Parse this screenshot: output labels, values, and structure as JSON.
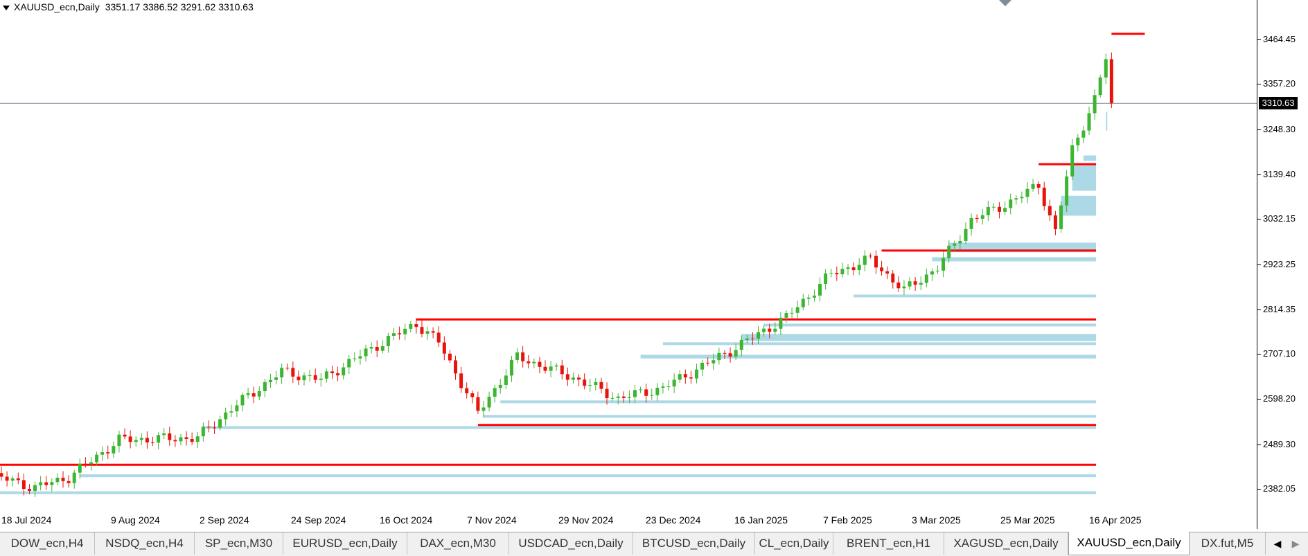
{
  "header": {
    "symbol": "XAUUSD_ecn,Daily",
    "ohlc": "3351.17 3386.52 3291.62 3310.63"
  },
  "colors": {
    "bull": "#3cb531",
    "bear": "#e8140c",
    "zone_blue": "#add8e6",
    "zone_gray": "#d3d3d3",
    "level_red": "#ff0000",
    "crosshair": "#7f8c99"
  },
  "price_axis": {
    "labels": [
      "3464.45",
      "3357.20",
      "3248.30",
      "3139.40",
      "3032.15",
      "2923.25",
      "2814.35",
      "2707.10",
      "2598.20",
      "2489.30",
      "2382.05"
    ],
    "current_price": "3310.63"
  },
  "time_axis": {
    "labels": [
      "18 Jul 2024",
      "9 Aug 2024",
      "2 Sep 2024",
      "24 Sep 2024",
      "16 Oct 2024",
      "7 Nov 2024",
      "29 Nov 2024",
      "23 Dec 2024",
      "16 Jan 2025",
      "7 Feb 2025",
      "3 Mar 2025",
      "25 Mar 2025",
      "16 Apr 2025"
    ]
  },
  "tabs": [
    {
      "label": "DOW_ecn,H4",
      "active": false
    },
    {
      "label": "NSDQ_ecn,H4",
      "active": false
    },
    {
      "label": "SP_ecn,M30",
      "active": false
    },
    {
      "label": "EURUSD_ecn,Daily",
      "active": false
    },
    {
      "label": "DAX_ecn,M30",
      "active": false
    },
    {
      "label": "USDCAD_ecn,Daily",
      "active": false
    },
    {
      "label": "BTCUSD_ecn,Daily",
      "active": false
    },
    {
      "label": "CL_ecn,Daily",
      "active": false
    },
    {
      "label": "BRENT_ecn,H1",
      "active": false
    },
    {
      "label": "XAGUSD_ecn,Daily",
      "active": false
    },
    {
      "label": "XAUUSD_ecn,Daily",
      "active": true
    },
    {
      "label": "DX.fut,M5",
      "active": false
    }
  ],
  "tab_nav": {
    "left": "◀",
    "right": "▶"
  },
  "chart_data": {
    "type": "candlestick",
    "symbol": "XAUUSD_ecn",
    "timeframe": "Daily",
    "ylim": [
      2340,
      3520
    ],
    "last_close": 3310.63,
    "key_levels_red": [
      {
        "price": 3478,
        "from": "2025-04-22",
        "to": "2025-04-24"
      },
      {
        "price": 3164,
        "from": "2025-04-03",
        "to": "2025-04-24"
      },
      {
        "price": 2956,
        "from": "2025-02-24",
        "to": "2025-04-24"
      },
      {
        "price": 2790,
        "from": "2024-10-30",
        "to": "2025-04-24"
      },
      {
        "price": 2536,
        "from": "2024-11-14",
        "to": "2025-04-24"
      },
      {
        "price": 2440,
        "from": "2024-07-15",
        "to": "2025-04-24"
      }
    ],
    "zones_blue": [
      {
        "top": 3290,
        "bottom": 3245,
        "from": "2025-04-21"
      },
      {
        "top": 3185,
        "bottom": 3172,
        "from": "2025-04-15"
      },
      {
        "top": 3162,
        "bottom": 3100,
        "from": "2025-04-11"
      },
      {
        "top": 3088,
        "bottom": 3040,
        "from": "2025-04-09"
      },
      {
        "top": 2975,
        "bottom": 2952,
        "from": "2025-03-12"
      },
      {
        "top": 2940,
        "bottom": 2930,
        "from": "2025-03-07"
      },
      {
        "top": 2850,
        "bottom": 2846,
        "from": "2025-02-17"
      },
      {
        "top": 2780,
        "bottom": 2775,
        "from": "2025-01-24"
      },
      {
        "top": 2755,
        "bottom": 2738,
        "from": "2025-01-20"
      },
      {
        "top": 2735,
        "bottom": 2730,
        "from": "2024-12-31"
      },
      {
        "top": 2705,
        "bottom": 2696,
        "from": "2024-12-25"
      },
      {
        "top": 2595,
        "bottom": 2590,
        "from": "2024-11-20"
      },
      {
        "top": 2560,
        "bottom": 2555,
        "from": "2024-11-15"
      },
      {
        "top": 2533,
        "bottom": 2527,
        "from": "2024-09-06"
      },
      {
        "top": 2417,
        "bottom": 2410,
        "from": "2024-08-07"
      },
      {
        "top": 2376,
        "bottom": 2370,
        "from": "2024-07-15"
      }
    ]
  }
}
